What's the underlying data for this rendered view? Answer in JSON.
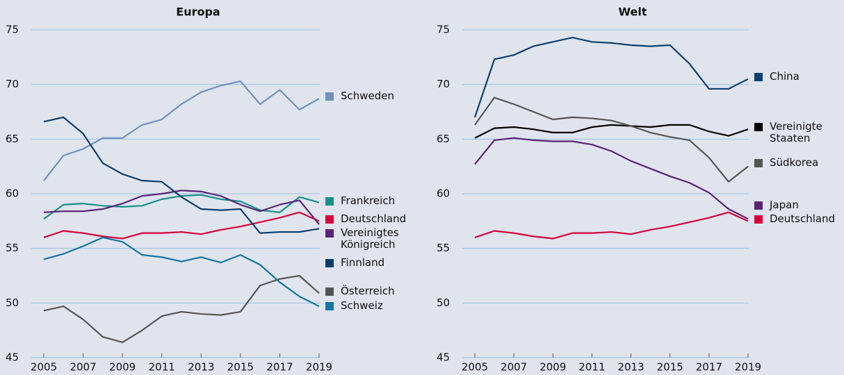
{
  "chart_data": [
    {
      "type": "line",
      "title": "Europa",
      "x": [
        2005,
        2006,
        2007,
        2008,
        2009,
        2010,
        2011,
        2012,
        2013,
        2014,
        2015,
        2016,
        2017,
        2018,
        2019
      ],
      "xlim": [
        2005,
        2019
      ],
      "xticks": [
        2005,
        2007,
        2009,
        2011,
        2013,
        2015,
        2017,
        2019
      ],
      "ylim": [
        45,
        75
      ],
      "yticks": [
        45,
        50,
        55,
        60,
        65,
        70,
        75
      ],
      "grid": true,
      "series": [
        {
          "name": "Schweden",
          "color": "#7090be",
          "values": [
            61.2,
            63.5,
            64.1,
            65.1,
            65.1,
            66.3,
            66.8,
            68.2,
            69.3,
            69.9,
            70.3,
            68.2,
            69.5,
            67.7,
            68.7
          ]
        },
        {
          "name": "Frankreich",
          "color": "#168f8a",
          "values": [
            57.7,
            59.0,
            59.1,
            58.9,
            58.8,
            58.9,
            59.5,
            59.8,
            59.9,
            59.5,
            59.3,
            58.5,
            58.3,
            59.7,
            59.2
          ]
        },
        {
          "name": "Deutschland",
          "color": "#d6003c",
          "values": [
            56.0,
            56.6,
            56.4,
            56.1,
            55.9,
            56.4,
            56.4,
            56.5,
            56.3,
            56.7,
            57.0,
            57.4,
            57.8,
            58.3,
            57.5
          ]
        },
        {
          "name": "Vereinigtes Königreich",
          "color": "#5a2377",
          "values": [
            58.3,
            58.4,
            58.4,
            58.6,
            59.1,
            59.8,
            60.0,
            60.3,
            60.2,
            59.8,
            59.0,
            58.4,
            59.0,
            59.4,
            57.2
          ]
        },
        {
          "name": "Finnland",
          "color": "#0b3d6b",
          "values": [
            66.6,
            67.0,
            65.5,
            62.8,
            61.8,
            61.2,
            61.1,
            59.7,
            58.6,
            58.5,
            58.6,
            56.4,
            56.5,
            56.5,
            56.8
          ]
        },
        {
          "name": "Österreich",
          "color": "#555555",
          "values": [
            49.3,
            49.7,
            48.5,
            46.9,
            46.4,
            47.5,
            48.8,
            49.2,
            49.0,
            48.9,
            49.2,
            51.6,
            52.2,
            52.5,
            50.9
          ]
        },
        {
          "name": "Schweiz",
          "color": "#1276a0",
          "values": [
            54.0,
            54.5,
            55.2,
            56.0,
            55.6,
            54.4,
            54.2,
            53.8,
            54.2,
            53.7,
            54.4,
            53.5,
            51.9,
            50.6,
            49.7
          ]
        }
      ]
    },
    {
      "type": "line",
      "title": "Welt",
      "x": [
        2005,
        2006,
        2007,
        2008,
        2009,
        2010,
        2011,
        2012,
        2013,
        2014,
        2015,
        2016,
        2017,
        2018,
        2019
      ],
      "xlim": [
        2005,
        2019
      ],
      "xticks": [
        2005,
        2007,
        2009,
        2011,
        2013,
        2015,
        2017,
        2019
      ],
      "ylim": [
        45,
        75
      ],
      "yticks": [
        45,
        50,
        55,
        60,
        65,
        70,
        75
      ],
      "grid": true,
      "series": [
        {
          "name": "China",
          "color": "#0e3f6e",
          "values": [
            67.0,
            72.3,
            72.7,
            73.5,
            73.9,
            74.3,
            73.9,
            73.8,
            73.6,
            73.5,
            73.6,
            71.9,
            69.6,
            69.6,
            70.5
          ]
        },
        {
          "name": "Vereinigte Staaten",
          "color": "#000000",
          "values": [
            65.1,
            66.0,
            66.1,
            65.9,
            65.6,
            65.6,
            66.1,
            66.3,
            66.2,
            66.1,
            66.3,
            66.3,
            65.7,
            65.3,
            65.9
          ]
        },
        {
          "name": "Südkorea",
          "color": "#555555",
          "values": [
            66.3,
            68.8,
            68.2,
            67.5,
            66.8,
            67.0,
            66.9,
            66.7,
            66.2,
            65.6,
            65.2,
            64.9,
            63.3,
            61.1,
            62.5
          ]
        },
        {
          "name": "Japan",
          "color": "#5a2377",
          "values": [
            62.7,
            64.9,
            65.1,
            64.9,
            64.8,
            64.8,
            64.5,
            63.9,
            63.0,
            62.3,
            61.6,
            61.0,
            60.1,
            58.6,
            57.7
          ]
        },
        {
          "name": "Deutschland",
          "color": "#d6003c",
          "values": [
            56.0,
            56.6,
            56.4,
            56.1,
            55.9,
            56.4,
            56.4,
            56.5,
            56.3,
            56.7,
            57.0,
            57.4,
            57.8,
            58.3,
            57.5
          ]
        }
      ]
    }
  ]
}
